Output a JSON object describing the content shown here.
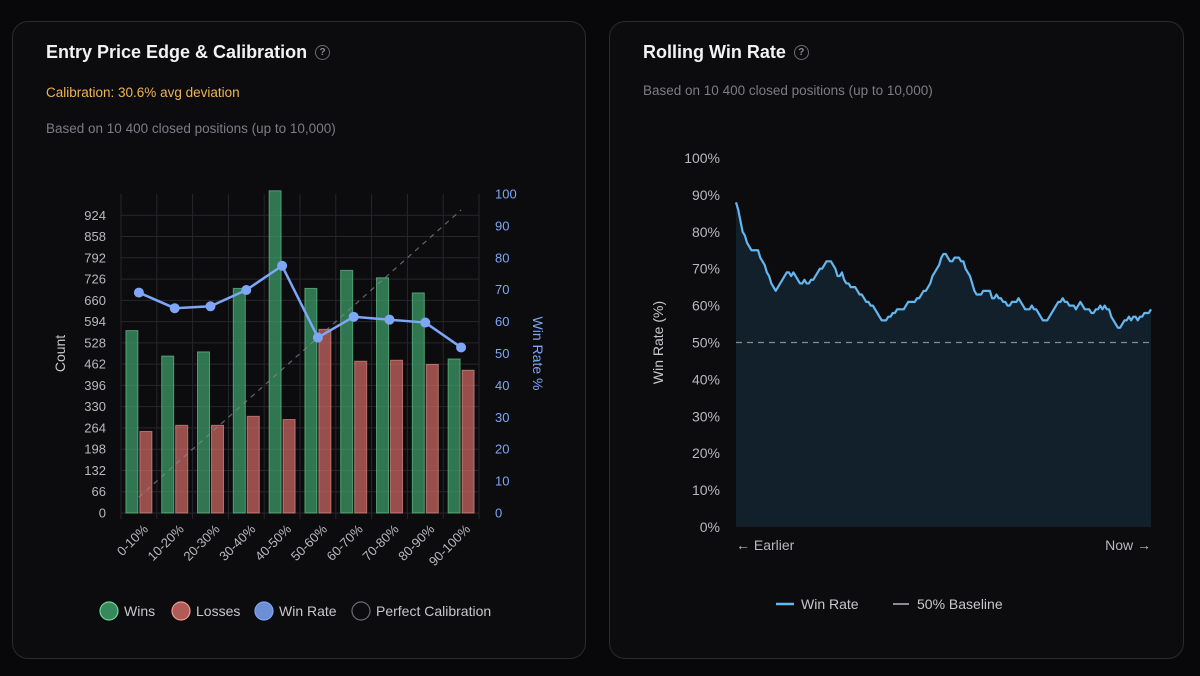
{
  "left_card": {
    "title": "Entry Price Edge & Calibration",
    "help_icon": "question-circle-icon",
    "calibration": "Calibration: 30.6% avg deviation",
    "subtitle": "Based on 10 400 closed positions (up to 10,000)"
  },
  "right_card": {
    "title": "Rolling Win Rate",
    "help_icon": "question-circle-icon",
    "subtitle": "Based on 10 400 closed positions (up to 10,000)"
  },
  "colors": {
    "wins": "#3fa06a",
    "losses": "#cf6a64",
    "win_rate": "#7ea6f7",
    "rolling_line": "#63b6ee",
    "calibration_text": "#f0b451"
  },
  "chart_data": [
    {
      "type": "bar",
      "categories": [
        "0-10%",
        "10-20%",
        "20-30%",
        "30-40%",
        "40-50%",
        "50-60%",
        "60-70%",
        "70-80%",
        "80-90%",
        "90-100%"
      ],
      "series": [
        {
          "name": "Wins",
          "kind": "bar",
          "axis": "left",
          "values": [
            566,
            487,
            500,
            697,
            1000,
            697,
            753,
            730,
            683,
            478
          ]
        },
        {
          "name": "Losses",
          "kind": "bar",
          "axis": "left",
          "values": [
            253,
            272,
            272,
            300,
            290,
            570,
            471,
            474,
            461,
            443
          ]
        },
        {
          "name": "Win Rate",
          "kind": "line",
          "axis": "right",
          "values": [
            69.1,
            64.2,
            64.8,
            69.9,
            77.5,
            55.0,
            61.5,
            60.6,
            59.7,
            51.9
          ]
        },
        {
          "name": "Perfect Calibration",
          "kind": "dashed-line",
          "axis": "right",
          "values": [
            5,
            15,
            25,
            35,
            45,
            55,
            65,
            75,
            85,
            95
          ]
        }
      ],
      "ylabel": "Count",
      "y2label": "Win Rate %",
      "yticks": [
        "0",
        "66",
        "132",
        "198",
        "264",
        "330",
        "396",
        "462",
        "528",
        "594",
        "660",
        "726",
        "792",
        "858",
        "924"
      ],
      "y2ticks": [
        "0",
        "10",
        "20",
        "30",
        "40",
        "50",
        "60",
        "70",
        "80",
        "90",
        "100"
      ],
      "ylim": [
        0,
        990
      ],
      "y2lim": [
        0,
        100
      ],
      "grid": true,
      "legend_position": "bottom",
      "legend": [
        "Wins",
        "Losses",
        "Win Rate",
        "Perfect Calibration"
      ]
    },
    {
      "type": "area",
      "series": [
        {
          "name": "Win Rate",
          "values": [
            88,
            86,
            83,
            80,
            79,
            77,
            76,
            75,
            75,
            75,
            75,
            73,
            72,
            71,
            69,
            68,
            66,
            65,
            64,
            65,
            66,
            67,
            68,
            69,
            69,
            68,
            69,
            68,
            67,
            66,
            66,
            67,
            66,
            66,
            67,
            67,
            68,
            69,
            70,
            70,
            71,
            72,
            72,
            72,
            71,
            70,
            68,
            68,
            69,
            67,
            66,
            66,
            65,
            65,
            65,
            64,
            63,
            63,
            62,
            61,
            61,
            60,
            60,
            59,
            58,
            57,
            56,
            56,
            56,
            57,
            57,
            58,
            58,
            59,
            59,
            59,
            59,
            60,
            61,
            61,
            61,
            61,
            62,
            62,
            63,
            64,
            64,
            65,
            66,
            68,
            69,
            70,
            71,
            73,
            74,
            74,
            73,
            72,
            72,
            73,
            73,
            73,
            72,
            72,
            70,
            69,
            68,
            66,
            64,
            63,
            63,
            63,
            64,
            64,
            64,
            64,
            62,
            62,
            63,
            62,
            62,
            61,
            61,
            60,
            60,
            61,
            61,
            61,
            62,
            61,
            60,
            59,
            59,
            59,
            60,
            59,
            59,
            58,
            57,
            56,
            56,
            56,
            57,
            58,
            59,
            60,
            61,
            61,
            62,
            61,
            61,
            60,
            60,
            60,
            59,
            60,
            61,
            60,
            59,
            59,
            59,
            58,
            58,
            59,
            59,
            60,
            59,
            60,
            59,
            59,
            57,
            56,
            55,
            54,
            54,
            55,
            56,
            56,
            57,
            56,
            57,
            57,
            56,
            57,
            57,
            58,
            58,
            58,
            59
          ]
        },
        {
          "name": "50% Baseline",
          "kind": "dashed-line",
          "value": 50
        }
      ],
      "ylabel": "Win Rate (%)",
      "yticks": [
        "0%",
        "10%",
        "20%",
        "30%",
        "40%",
        "50%",
        "60%",
        "70%",
        "80%",
        "90%",
        "100%"
      ],
      "ylim": [
        0,
        100
      ],
      "xlabels": [
        "← Earlier",
        "Now →"
      ],
      "grid": false,
      "legend_position": "bottom",
      "legend": [
        "Win Rate",
        "50% Baseline"
      ]
    }
  ]
}
